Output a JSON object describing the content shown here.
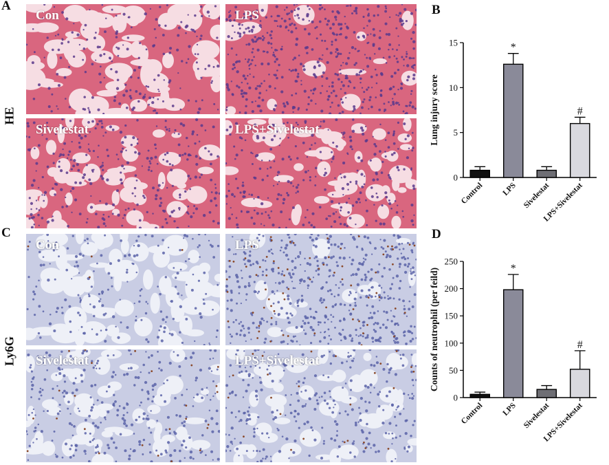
{
  "panel_letters": {
    "a": "A",
    "b": "B",
    "c": "C",
    "d": "D"
  },
  "row_labels": {
    "he": "HE",
    "ly6g": "Ly6G"
  },
  "micrographs": {
    "he": [
      {
        "label": "Con",
        "stain": "he",
        "density": "normal"
      },
      {
        "label": "LPS",
        "stain": "he",
        "density": "dense"
      },
      {
        "label": "Sivelestat",
        "stain": "he",
        "density": "mid"
      },
      {
        "label": "LPS+Sivelestat",
        "stain": "he",
        "density": "mid"
      }
    ],
    "ly6g": [
      {
        "label": "Con",
        "stain": "ihc",
        "density": "normal"
      },
      {
        "label": "LPS",
        "stain": "ihc",
        "density": "dense"
      },
      {
        "label": "Sivelestat",
        "stain": "ihc",
        "density": "mid"
      },
      {
        "label": "LPS+Sivelestat",
        "stain": "ihc",
        "density": "mid"
      }
    ]
  },
  "colors": {
    "he_background": "#f6dde3",
    "he_tissue": "#d9667f",
    "he_nuclei": "#5a3a8c",
    "ihc_background": "#eef0f7",
    "ihc_tissue": "#c9cde4",
    "ihc_nuclei": "#5a63a8",
    "ihc_positive": "#8b4a2b",
    "bar_colors": [
      "#111111",
      "#8a8a99",
      "#6e6e74",
      "#d9d9df"
    ]
  },
  "chart_data": [
    {
      "type": "bar",
      "panel": "B",
      "categories": [
        "Control",
        "LPS",
        "Sivelestat",
        "LPS+Sivelestat"
      ],
      "values": [
        0.8,
        12.6,
        0.8,
        6.0
      ],
      "errors": [
        0.4,
        1.2,
        0.4,
        0.7
      ],
      "annotations": [
        "",
        "*",
        "",
        "#"
      ],
      "ylabel": "Lung injury score",
      "ylim": [
        0,
        15
      ],
      "yticks": [
        0,
        5,
        10,
        15
      ]
    },
    {
      "type": "bar",
      "panel": "D",
      "categories": [
        "Control",
        "LPS",
        "Sivelestat",
        "LPS+Sivelestat"
      ],
      "values": [
        6,
        198,
        15,
        52
      ],
      "errors": [
        4,
        28,
        7,
        34
      ],
      "annotations": [
        "",
        "*",
        "",
        "#"
      ],
      "ylabel": "Counts of neutrophil (per feild)",
      "ylim": [
        0,
        250
      ],
      "yticks": [
        0,
        50,
        100,
        150,
        200,
        250
      ]
    }
  ]
}
